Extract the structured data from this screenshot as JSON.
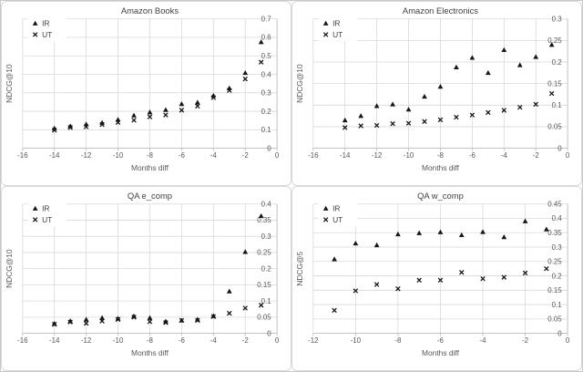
{
  "style": {
    "marker_color": "#161616",
    "grid_color": "#d9d9d9",
    "axis_color": "#bfbfbf",
    "tick_text_color": "#595959",
    "title_color": "#404040",
    "legend_text_color": "#404040",
    "background": "#ffffff"
  },
  "chart_data": [
    {
      "id": "amazon-books",
      "type": "scatter",
      "title": "Amazon Books",
      "xlabel": "Months diff",
      "ylabel": "NDCG@10",
      "xlim": [
        -16,
        0
      ],
      "ylim": [
        0,
        0.7
      ],
      "xtick_step": 2,
      "ytick_step": 0.1,
      "grid": true,
      "legend_position": "top-left-inside",
      "x": [
        -14,
        -13,
        -12,
        -11,
        -10,
        -9,
        -8,
        -7,
        -6,
        -5,
        -4,
        -3,
        -2,
        -1
      ],
      "series": [
        {
          "name": "IR",
          "marker": "triangle",
          "values": [
            0.108,
            0.12,
            0.13,
            0.138,
            0.155,
            0.178,
            0.195,
            0.208,
            0.24,
            0.248,
            0.285,
            0.325,
            0.408,
            0.575
          ]
        },
        {
          "name": "UT",
          "marker": "x",
          "values": [
            0.098,
            0.112,
            0.116,
            0.128,
            0.14,
            0.152,
            0.17,
            0.18,
            0.206,
            0.228,
            0.274,
            0.313,
            0.375,
            0.466
          ]
        }
      ]
    },
    {
      "id": "amazon-electronics",
      "type": "scatter",
      "title": "Amazon Electronics",
      "xlabel": "Months diff",
      "ylabel": "NDCG@10",
      "xlim": [
        -16,
        0
      ],
      "ylim": [
        0,
        0.3
      ],
      "xtick_step": 2,
      "ytick_step": 0.05,
      "grid": true,
      "legend_position": "top-left-inside",
      "x": [
        -14,
        -13,
        -12,
        -11,
        -10,
        -9,
        -8,
        -7,
        -6,
        -5,
        -4,
        -3,
        -2,
        -1
      ],
      "series": [
        {
          "name": "IR",
          "marker": "triangle",
          "values": [
            0.065,
            0.075,
            0.098,
            0.102,
            0.09,
            0.12,
            0.143,
            0.188,
            0.21,
            0.175,
            0.228,
            0.193,
            0.212,
            0.24
          ]
        },
        {
          "name": "UT",
          "marker": "x",
          "values": [
            0.048,
            0.052,
            0.053,
            0.057,
            0.058,
            0.062,
            0.066,
            0.072,
            0.077,
            0.083,
            0.088,
            0.095,
            0.102,
            0.127
          ]
        }
      ]
    },
    {
      "id": "qa-e-comp",
      "type": "scatter",
      "title": "QA e_comp",
      "xlabel": "Months diff",
      "ylabel": "NDCG@10",
      "xlim": [
        -16,
        0
      ],
      "ylim": [
        0,
        0.4
      ],
      "xtick_step": 2,
      "ytick_step": 0.05,
      "grid": true,
      "legend_position": "top-left-inside",
      "x": [
        -14,
        -13,
        -12,
        -11,
        -10,
        -9,
        -8,
        -7,
        -6,
        -5,
        -4,
        -3,
        -2,
        -1
      ],
      "series": [
        {
          "name": "IR",
          "marker": "triangle",
          "values": [
            0.03,
            0.038,
            0.043,
            0.048,
            0.046,
            0.053,
            0.048,
            0.037,
            0.04,
            0.043,
            0.054,
            0.13,
            0.252,
            0.363
          ]
        },
        {
          "name": "UT",
          "marker": "x",
          "values": [
            0.028,
            0.035,
            0.031,
            0.038,
            0.043,
            0.05,
            0.036,
            0.033,
            0.04,
            0.04,
            0.052,
            0.062,
            0.078,
            0.087
          ]
        }
      ]
    },
    {
      "id": "qa-w-comp",
      "type": "scatter",
      "title": "QA w_comp",
      "xlabel": "Months diff",
      "ylabel": "NDCG@5",
      "xlim": [
        -12,
        0
      ],
      "ylim": [
        0,
        0.45
      ],
      "xtick_step": 2,
      "ytick_step": 0.05,
      "grid": true,
      "legend_position": "top-left-inside",
      "x": [
        -11,
        -10,
        -9,
        -8,
        -7,
        -6,
        -5,
        -4,
        -3,
        -2,
        -1
      ],
      "series": [
        {
          "name": "IR",
          "marker": "triangle",
          "values": [
            0.258,
            0.313,
            0.307,
            0.345,
            0.349,
            0.352,
            0.342,
            0.353,
            0.335,
            0.39,
            0.362
          ]
        },
        {
          "name": "UT",
          "marker": "x",
          "values": [
            0.08,
            0.148,
            0.17,
            0.155,
            0.185,
            0.185,
            0.212,
            0.19,
            0.195,
            0.21,
            0.225
          ]
        }
      ]
    }
  ]
}
